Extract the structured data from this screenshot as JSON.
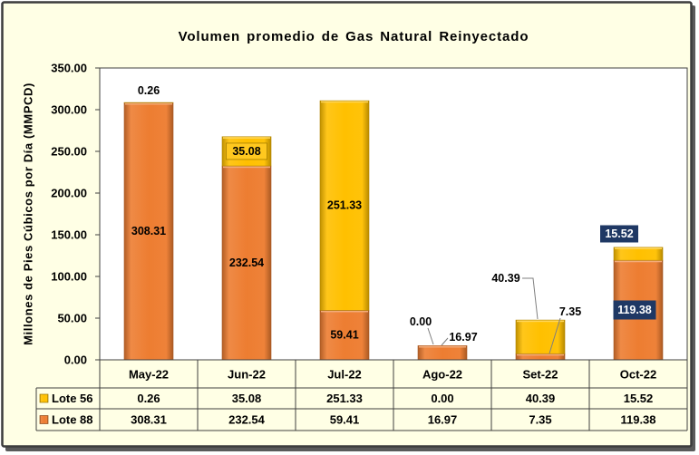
{
  "chart_data": {
    "type": "bar",
    "stacked": true,
    "title": "Volumen promedio de Gas Natural Reinyectado",
    "xlabel": "",
    "ylabel": "Millones de Pies Cúbicos por Día (MMPCD)",
    "ylim": [
      0,
      350
    ],
    "yticks": [
      "0.00",
      "50.00",
      "100.00",
      "150.00",
      "200.00",
      "250.00",
      "300.00",
      "350.00"
    ],
    "grid": false,
    "legend": "bottom-left",
    "categories": [
      "May-22",
      "Jun-22",
      "Jul-22",
      "Ago-22",
      "Set-22",
      "Oct-22"
    ],
    "series": [
      {
        "name": "Lote 56",
        "color": "#FFC000",
        "values": [
          0.26,
          35.08,
          251.33,
          0.0,
          40.39,
          15.52
        ],
        "labels": [
          "0.26",
          "35.08",
          "251.33",
          "0.00",
          "40.39",
          "15.52"
        ]
      },
      {
        "name": "Lote 88",
        "color": "#ED7D31",
        "values": [
          308.31,
          232.54,
          59.41,
          16.97,
          7.35,
          119.38
        ],
        "labels": [
          "308.31",
          "232.54",
          "59.41",
          "16.97",
          "7.35",
          "119.38"
        ]
      }
    ]
  },
  "colors": {
    "chart_background": "#FFFFE5",
    "plot_background": "#FFFFFF",
    "label_box_navy": "#1F3864",
    "leader_line": "#7F7F7F"
  }
}
